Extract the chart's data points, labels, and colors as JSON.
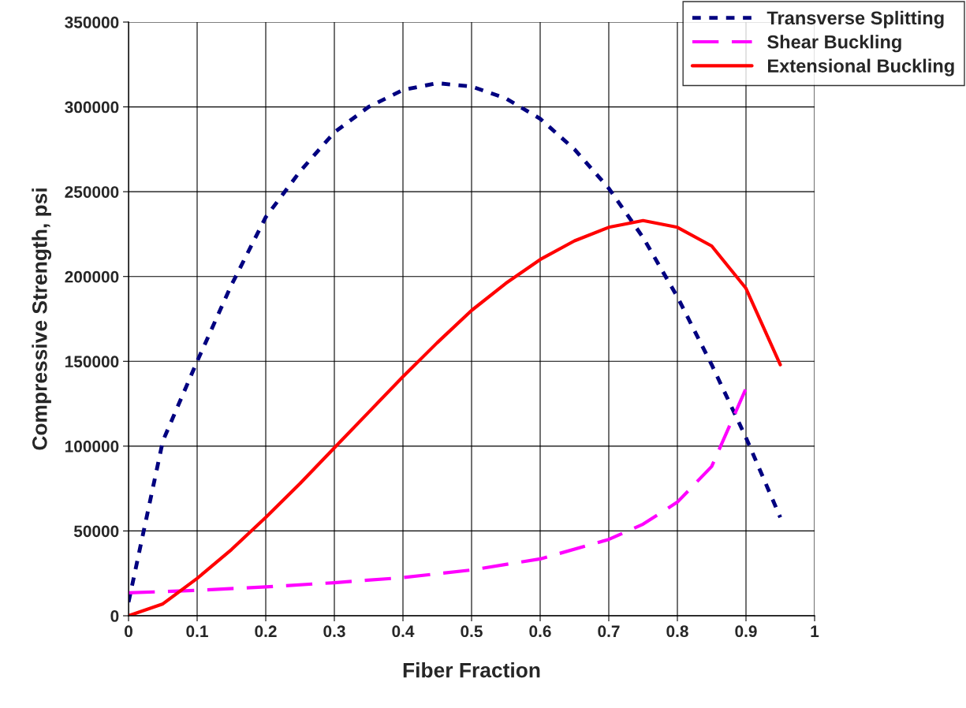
{
  "chart_data": {
    "type": "line",
    "xlabel": "Fiber Fraction",
    "ylabel": "Compressive Strength, psi",
    "x": [
      0,
      0.05,
      0.1,
      0.15,
      0.2,
      0.25,
      0.3,
      0.35,
      0.4,
      0.45,
      0.5,
      0.55,
      0.6,
      0.65,
      0.7,
      0.75,
      0.8,
      0.85,
      0.9,
      0.95
    ],
    "series": [
      {
        "name": "Transverse Splitting",
        "color": "#000080",
        "line_style": "dotted",
        "values": [
          8000,
          103000,
          150000,
          195000,
          235000,
          262000,
          285000,
          300000,
          310000,
          314000,
          312000,
          305000,
          293000,
          275000,
          252000,
          223000,
          188000,
          148000,
          105000,
          58000
        ]
      },
      {
        "name": "Shear Buckling",
        "color": "#ff00ff",
        "line_style": "dashed",
        "x": [
          0,
          0.1,
          0.2,
          0.3,
          0.4,
          0.5,
          0.6,
          0.7,
          0.75,
          0.8,
          0.85,
          0.9
        ],
        "values": [
          13500,
          15000,
          17000,
          19500,
          22500,
          27000,
          33500,
          45000,
          54000,
          67000,
          88000,
          134000
        ]
      },
      {
        "name": "Extensional Buckling",
        "color": "#ff0000",
        "line_style": "solid",
        "values": [
          0,
          7000,
          22000,
          39000,
          58000,
          78000,
          99000,
          120000,
          141000,
          161000,
          180000,
          196000,
          210000,
          221000,
          229000,
          233000,
          229000,
          218000,
          193000,
          148000
        ]
      }
    ],
    "xlim": [
      0,
      1
    ],
    "xticks": [
      0,
      0.1,
      0.2,
      0.3,
      0.4,
      0.5,
      0.6,
      0.7,
      0.8,
      0.9,
      1
    ],
    "ylim": [
      0,
      350000
    ],
    "yticks": [
      0,
      50000,
      100000,
      150000,
      200000,
      250000,
      300000,
      350000
    ],
    "grid": true,
    "legend": "top right",
    "marker": "none"
  }
}
